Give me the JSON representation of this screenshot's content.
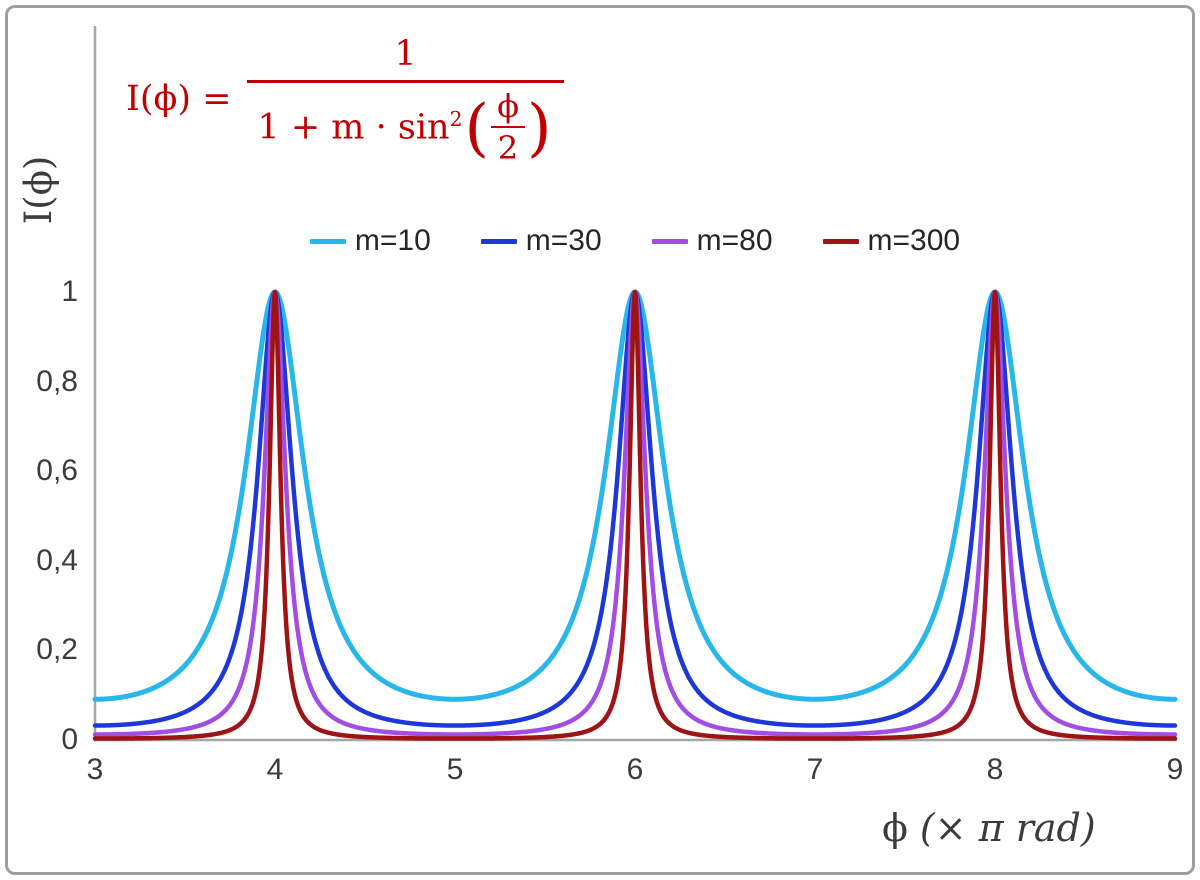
{
  "page": {
    "background": "#ffffff",
    "frame_border_color": "#9e9e9e"
  },
  "formula": {
    "lhs": "I(ϕ) =",
    "numerator": "1",
    "den_left": "1 + m · sin",
    "exponent": "2",
    "paren_open": "(",
    "paren_close": ")",
    "inner_numerator": "ϕ",
    "inner_denominator": "2",
    "color": "#c00000"
  },
  "axes": {
    "ylabel": "I(ϕ)",
    "xlabel_symbol": "ϕ",
    "xlabel_unit": "(× π rad)",
    "line_color": "#a6a6a6",
    "tick_color": "#3c3c3c",
    "y_ticks": [
      {
        "label": "1",
        "value": 1
      },
      {
        "label": "0,8",
        "value": 0.8
      },
      {
        "label": "0,6",
        "value": 0.6
      },
      {
        "label": "0,4",
        "value": 0.4
      },
      {
        "label": "0,2",
        "value": 0.2
      },
      {
        "label": "0",
        "value": 0
      }
    ],
    "x_ticks": [
      {
        "label": "3",
        "value": 3
      },
      {
        "label": "4",
        "value": 4
      },
      {
        "label": "5",
        "value": 5
      },
      {
        "label": "6",
        "value": 6
      },
      {
        "label": "7",
        "value": 7
      },
      {
        "label": "8",
        "value": 8
      },
      {
        "label": "9",
        "value": 9
      }
    ]
  },
  "chart_data": {
    "type": "line",
    "title": "",
    "xlabel": "ϕ (× π rad)",
    "ylabel": "I(ϕ)",
    "xlim": [
      3,
      9
    ],
    "ylim": [
      0,
      1
    ],
    "x_unit": "π rad",
    "function": "y = 1 / (1 + m * sin^2(x*pi/2)), with x expressed in units of pi rad",
    "peaks_at_x": [
      4,
      6,
      8
    ],
    "peak_value": 1,
    "minima_at_x": [
      3,
      5,
      7,
      9
    ],
    "grid": false,
    "legend_position": "top",
    "series": [
      {
        "name": "m=10",
        "m": 10,
        "color": "#29b6ea",
        "stroke_width": 5,
        "min_value": 0.0909
      },
      {
        "name": "m=30",
        "m": 30,
        "color": "#1e38d8",
        "stroke_width": 4.5,
        "min_value": 0.0323
      },
      {
        "name": "m=80",
        "m": 80,
        "color": "#a24de4",
        "stroke_width": 4.5,
        "min_value": 0.0123
      },
      {
        "name": "m=300",
        "m": 300,
        "color": "#9e1414",
        "stroke_width": 4.5,
        "min_value": 0.0033
      }
    ]
  }
}
